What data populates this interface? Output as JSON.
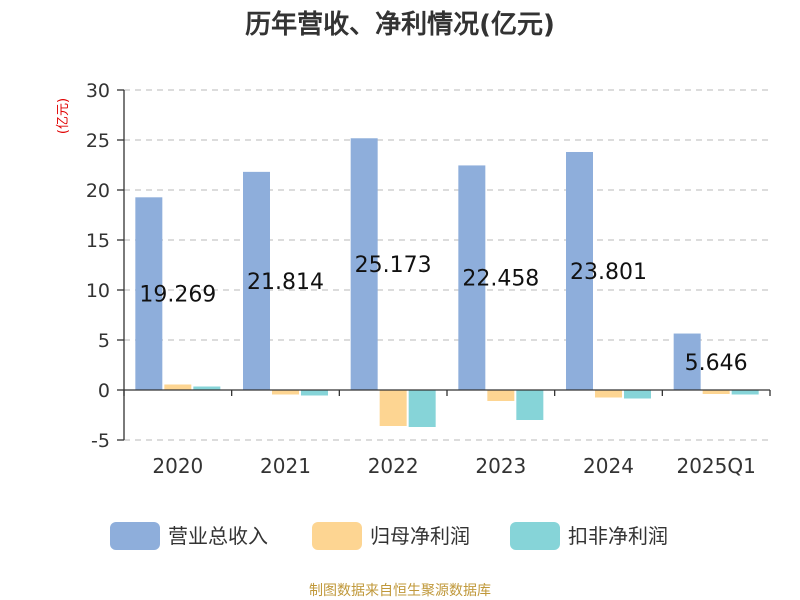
{
  "chart_data": {
    "type": "bar",
    "title": "历年营收、净利情况(亿元)",
    "ylabel": "(亿元)",
    "xlabel": "",
    "categories": [
      "2020",
      "2021",
      "2022",
      "2023",
      "2024",
      "2025Q1"
    ],
    "ylim": [
      -5,
      30
    ],
    "yticks": [
      30,
      25,
      20,
      15,
      10,
      5,
      0,
      -5
    ],
    "grid": true,
    "legend_position": "bottom",
    "series": [
      {
        "name": "营业总收入",
        "color": "#8eaedb",
        "values": [
          19.269,
          21.814,
          25.173,
          22.458,
          23.801,
          5.646
        ]
      },
      {
        "name": "归母净利润",
        "color": "#fdd592",
        "values": [
          0.55,
          -0.45,
          -3.6,
          -1.1,
          -0.75,
          -0.4
        ]
      },
      {
        "name": "扣非净利润",
        "color": "#86d4d8",
        "values": [
          0.35,
          -0.55,
          -3.7,
          -3.0,
          -0.85,
          -0.45
        ]
      }
    ],
    "data_labels": [
      "19.269",
      "21.814",
      "25.173",
      "22.458",
      "23.801",
      "5.646"
    ],
    "source": "制图数据来自恒生聚源数据库"
  }
}
